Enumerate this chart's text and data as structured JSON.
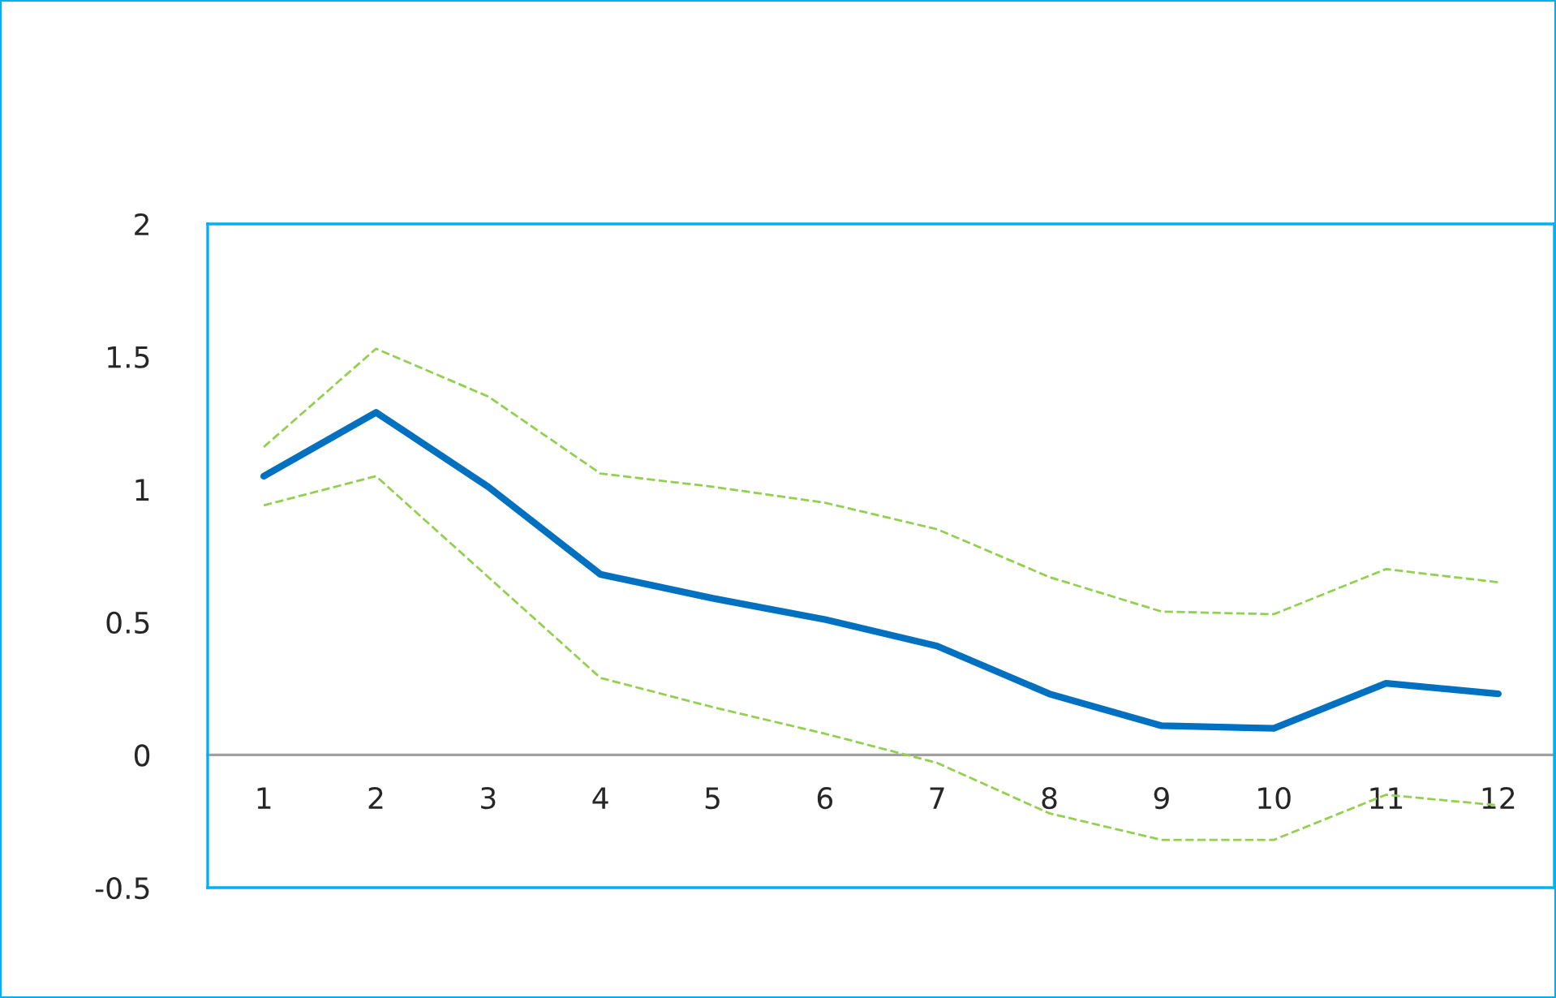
{
  "chart_data": {
    "type": "line",
    "categories": [
      "1",
      "2",
      "3",
      "4",
      "5",
      "6",
      "7",
      "8",
      "9",
      "10",
      "11",
      "12"
    ],
    "series": [
      {
        "color": "#92d050",
        "line_style": "dashed",
        "values": [
          1.16,
          1.53,
          1.35,
          1.06,
          1.01,
          0.95,
          0.85,
          0.67,
          0.54,
          0.53,
          0.7,
          0.65
        ]
      },
      {
        "color": "#0070c0",
        "line_style": "solid",
        "values": [
          1.05,
          1.29,
          1.01,
          0.68,
          0.59,
          0.51,
          0.41,
          0.23,
          0.11,
          0.1,
          0.27,
          0.23
        ]
      },
      {
        "color": "#92d050",
        "line_style": "dashed",
        "values": [
          0.94,
          1.05,
          0.67,
          0.29,
          0.18,
          0.08,
          -0.03,
          -0.22,
          -0.32,
          -0.32,
          -0.15,
          -0.19
        ]
      }
    ],
    "ylim": [
      -0.5,
      2
    ],
    "yticks": [
      -0.5,
      0,
      0.5,
      1,
      1.5,
      2
    ],
    "grid": false,
    "legend": false,
    "marker": "none"
  }
}
